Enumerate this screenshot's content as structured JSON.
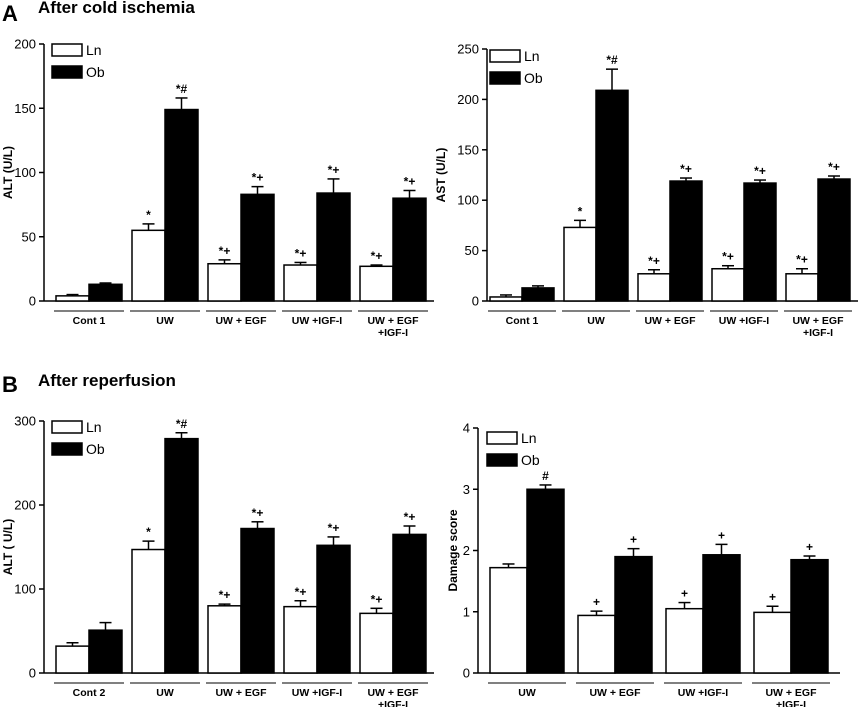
{
  "panels": [
    {
      "letter": "A",
      "title": "After cold ischemia"
    },
    {
      "letter": "B",
      "title": "After reperfusion"
    }
  ],
  "legend": {
    "lean": "Ln",
    "obese": "Ob"
  },
  "colors": {
    "lean_fill": "#ffffff",
    "obese_fill": "#000000",
    "stroke": "#000000"
  },
  "chart_data": [
    {
      "type": "bar",
      "panel": "A",
      "ylabel": "ALT (U/L)",
      "ylim": [
        0,
        200
      ],
      "yticks": [
        0,
        50,
        100,
        150,
        200
      ],
      "categories": [
        [
          "Cont 1"
        ],
        [
          "UW"
        ],
        [
          "UW + EGF"
        ],
        [
          "UW +IGF-I"
        ],
        [
          "UW + EGF",
          "+IGF-I"
        ]
      ],
      "series": [
        {
          "name": "Ln",
          "values": [
            4,
            55,
            29,
            28,
            27
          ],
          "errors": [
            1,
            5,
            3,
            2,
            1
          ],
          "labels": [
            "",
            "*",
            "*+",
            "*+",
            "*+"
          ]
        },
        {
          "name": "Ob",
          "values": [
            13,
            149,
            83,
            84,
            80
          ],
          "errors": [
            1,
            9,
            6,
            11,
            6
          ],
          "labels": [
            "",
            "*#",
            "*+",
            "*+",
            "*+"
          ]
        }
      ]
    },
    {
      "type": "bar",
      "panel": "A",
      "ylabel": "AST (U/L)",
      "ylim": [
        0,
        250
      ],
      "yticks": [
        0,
        50,
        100,
        150,
        200,
        250
      ],
      "categories": [
        [
          "Cont 1"
        ],
        [
          "UW"
        ],
        [
          "UW + EGF"
        ],
        [
          "UW +IGF-I"
        ],
        [
          "UW + EGF",
          "+IGF-I"
        ]
      ],
      "series": [
        {
          "name": "Ln",
          "values": [
            4,
            73,
            27,
            32,
            27
          ],
          "errors": [
            2,
            7,
            4,
            3,
            5
          ],
          "labels": [
            "",
            "*",
            "*+",
            "*+",
            "*+"
          ]
        },
        {
          "name": "Ob",
          "values": [
            13,
            209,
            119,
            117,
            121
          ],
          "errors": [
            2,
            21,
            3,
            3,
            3
          ],
          "labels": [
            "",
            "*#",
            "*+",
            "*+",
            "*+"
          ]
        }
      ]
    },
    {
      "type": "bar",
      "panel": "B",
      "ylabel": "ALT ( U/L)",
      "ylim": [
        0,
        300
      ],
      "yticks": [
        0,
        100,
        200,
        300
      ],
      "categories": [
        [
          "Cont 2"
        ],
        [
          "UW"
        ],
        [
          "UW + EGF"
        ],
        [
          "UW +IGF-I"
        ],
        [
          "UW + EGF",
          "+IGF-I"
        ]
      ],
      "series": [
        {
          "name": "Ln",
          "values": [
            32,
            147,
            80,
            79,
            71
          ],
          "errors": [
            4,
            10,
            2,
            7,
            6
          ],
          "labels": [
            "",
            "*",
            "*+",
            "*+",
            "*+"
          ]
        },
        {
          "name": "Ob",
          "values": [
            51,
            279,
            172,
            152,
            165
          ],
          "errors": [
            9,
            7,
            8,
            10,
            10
          ],
          "labels": [
            "",
            "*#",
            "*+",
            "*+",
            "*+"
          ]
        }
      ]
    },
    {
      "type": "bar",
      "panel": "B",
      "ylabel": "Damage score",
      "ylim": [
        0,
        4
      ],
      "yticks": [
        0,
        1,
        2,
        3,
        4
      ],
      "categories": [
        [
          "UW"
        ],
        [
          "UW + EGF"
        ],
        [
          "UW +IGF-I"
        ],
        [
          "UW + EGF",
          "+IGF-I"
        ]
      ],
      "series": [
        {
          "name": "Ln",
          "values": [
            1.72,
            0.94,
            1.05,
            0.99
          ],
          "errors": [
            0.06,
            0.07,
            0.1,
            0.1
          ],
          "labels": [
            "",
            "+",
            "+",
            "+"
          ]
        },
        {
          "name": "Ob",
          "values": [
            3.0,
            1.9,
            1.93,
            1.85
          ],
          "errors": [
            0.07,
            0.13,
            0.17,
            0.06
          ],
          "labels": [
            "#",
            "+",
            "+",
            "+"
          ]
        }
      ]
    }
  ]
}
